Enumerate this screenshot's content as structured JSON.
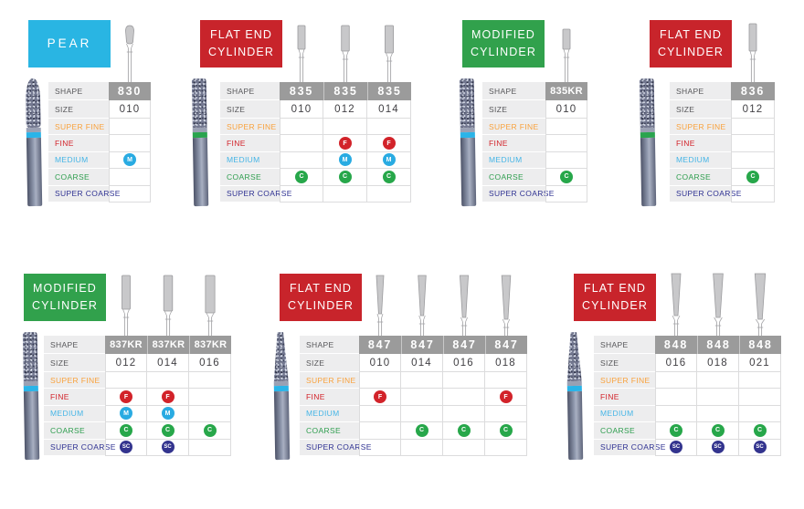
{
  "colors": {
    "cyan": "#29b5e3",
    "red": "#c8242b",
    "green": "#31a14c",
    "header_gray": "#9b9b9b",
    "label_cell_bg": "#ededee",
    "grid_line": "#dcdcdd",
    "label_text": "#57575a",
    "size_text": "#414044",
    "grit_label_colors": [
      "#f9a13b",
      "#d2232a",
      "#45b5e6",
      "#2f9e4f",
      "#2e3192"
    ],
    "dot_colors": {
      "F": "#d2232a",
      "M": "#29abe2",
      "C": "#27a74a",
      "SC": "#33348e"
    },
    "band_colors": {
      "blue": "#2ab4e8",
      "green": "#2aa44e"
    }
  },
  "table": {
    "shape_label": "SHAPE",
    "size_label": "SIZE",
    "grit_labels": [
      "SUPER FINE",
      "FINE",
      "MEDIUM",
      "COARSE",
      "SUPER COARSE"
    ]
  },
  "panels": [
    {
      "title_lines": [
        "PEAR"
      ],
      "color": "cyan",
      "band": "blue",
      "columns": [
        {
          "shape": "830",
          "size": "010",
          "marks": [
            "",
            "",
            "M",
            "",
            ""
          ]
        }
      ]
    },
    {
      "title_lines": [
        "FLAT END",
        "CYLINDER"
      ],
      "color": "red",
      "band": "green",
      "columns": [
        {
          "shape": "835",
          "size": "010",
          "marks": [
            "",
            "",
            "",
            "C",
            ""
          ]
        },
        {
          "shape": "835",
          "size": "012",
          "marks": [
            "",
            "F",
            "M",
            "C",
            ""
          ]
        },
        {
          "shape": "835",
          "size": "014",
          "marks": [
            "",
            "F",
            "M",
            "C",
            ""
          ]
        }
      ]
    },
    {
      "title_lines": [
        "MODIFIED",
        "CYLINDER"
      ],
      "color": "green",
      "band": "blue",
      "columns": [
        {
          "shape": "835KR",
          "size": "010",
          "marks": [
            "",
            "",
            "",
            "C",
            ""
          ]
        }
      ]
    },
    {
      "title_lines": [
        "FLAT END",
        "CYLINDER"
      ],
      "color": "red",
      "band": "green",
      "columns": [
        {
          "shape": "836",
          "size": "012",
          "marks": [
            "",
            "",
            "",
            "C",
            ""
          ]
        }
      ]
    },
    {
      "title_lines": [
        "MODIFIED",
        "CYLINDER"
      ],
      "color": "green",
      "band": "blue",
      "columns": [
        {
          "shape": "837KR",
          "size": "012",
          "marks": [
            "",
            "F",
            "M",
            "C",
            "SC"
          ]
        },
        {
          "shape": "837KR",
          "size": "014",
          "marks": [
            "",
            "F",
            "M",
            "C",
            "SC"
          ]
        },
        {
          "shape": "837KR",
          "size": "016",
          "marks": [
            "",
            "",
            "",
            "C",
            ""
          ]
        }
      ]
    },
    {
      "title_lines": [
        "FLAT END",
        "CYLINDER"
      ],
      "color": "red",
      "band": "blue",
      "columns": [
        {
          "shape": "847",
          "size": "010",
          "marks": [
            "",
            "F",
            "",
            "",
            ""
          ]
        },
        {
          "shape": "847",
          "size": "014",
          "marks": [
            "",
            "",
            "",
            "C",
            ""
          ]
        },
        {
          "shape": "847",
          "size": "016",
          "marks": [
            "",
            "",
            "",
            "C",
            ""
          ]
        },
        {
          "shape": "847",
          "size": "018",
          "marks": [
            "",
            "F",
            "",
            "C",
            ""
          ]
        }
      ]
    },
    {
      "title_lines": [
        "FLAT END",
        "CYLINDER"
      ],
      "color": "red",
      "band": "blue",
      "columns": [
        {
          "shape": "848",
          "size": "016",
          "marks": [
            "",
            "",
            "",
            "C",
            "SC"
          ]
        },
        {
          "shape": "848",
          "size": "018",
          "marks": [
            "",
            "",
            "",
            "C",
            "SC"
          ]
        },
        {
          "shape": "848",
          "size": "021",
          "marks": [
            "",
            "",
            "",
            "C",
            "SC"
          ]
        }
      ]
    }
  ]
}
